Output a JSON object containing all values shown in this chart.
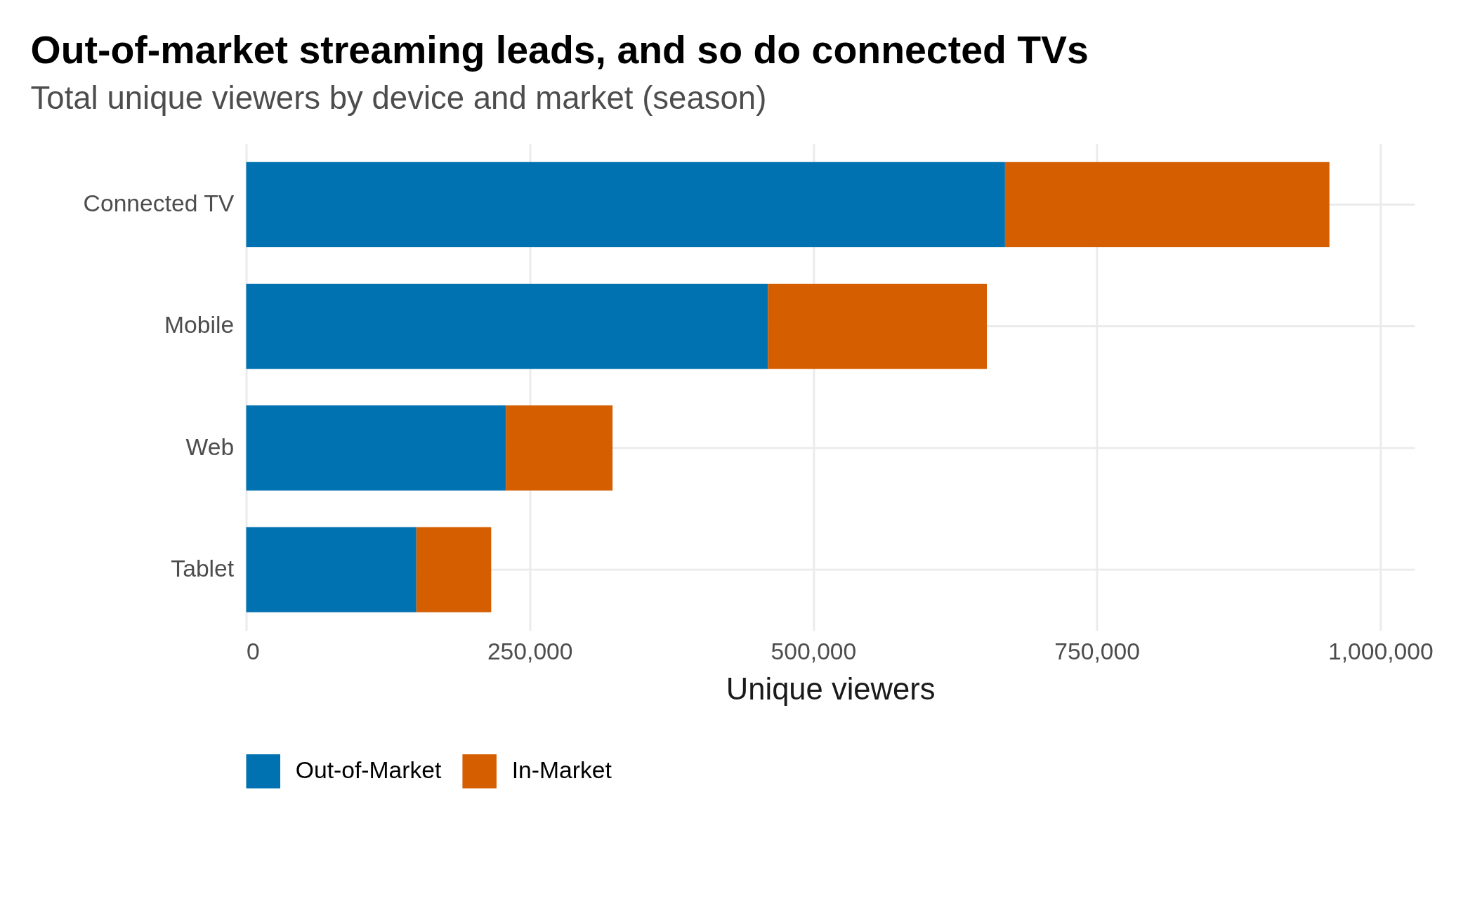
{
  "chart_data": {
    "type": "bar",
    "orientation": "horizontal",
    "stacked": true,
    "title": "Out-of-market streaming leads, and so do connected TVs",
    "subtitle": "Total unique viewers by device and market (season)",
    "xlabel": "Unique viewers",
    "categories": [
      "Connected TV",
      "Mobile",
      "Web",
      "Tablet"
    ],
    "series": [
      {
        "name": "Out-of-Market",
        "color": "#0072b2",
        "values": [
          669000,
          460000,
          229000,
          150000
        ]
      },
      {
        "name": "In-Market",
        "color": "#d55e00",
        "values": [
          286000,
          193000,
          94000,
          66000
        ]
      }
    ],
    "xlim": [
      0,
      1030000
    ],
    "xticks": [
      {
        "value": 0,
        "label": "0"
      },
      {
        "value": 250000,
        "label": "250,000"
      },
      {
        "value": 500000,
        "label": "500,000"
      },
      {
        "value": 750000,
        "label": "750,000"
      },
      {
        "value": 1000000,
        "label": "1,000,000"
      }
    ],
    "grid": true,
    "legend": "bottom"
  }
}
